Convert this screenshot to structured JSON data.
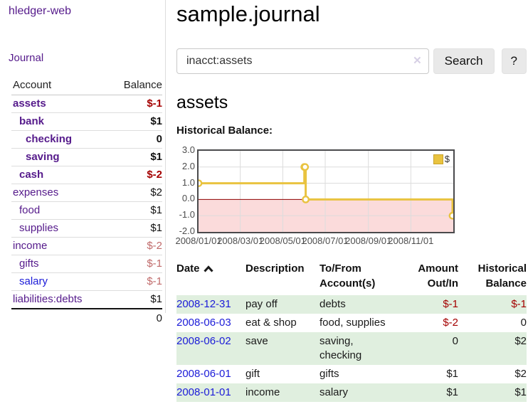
{
  "sidebar": {
    "title": "hledger-web",
    "journal_link": "Journal",
    "accounts": {
      "col_account": "Account",
      "col_balance": "Balance",
      "rows": [
        {
          "name": "assets",
          "balance": "$-1",
          "depth": 1,
          "bold": true,
          "name_color": "purple",
          "balance_color": "negative-strong"
        },
        {
          "name": "bank",
          "balance": "$1",
          "depth": 2,
          "bold": true,
          "name_color": "purple",
          "balance_color": "normal"
        },
        {
          "name": "checking",
          "balance": "0",
          "depth": 3,
          "bold": true,
          "name_color": "purple",
          "balance_color": "normal"
        },
        {
          "name": "saving",
          "balance": "$1",
          "depth": 3,
          "bold": true,
          "name_color": "purple",
          "balance_color": "normal"
        },
        {
          "name": "cash",
          "balance": "$-2",
          "depth": 2,
          "bold": true,
          "name_color": "purple",
          "balance_color": "negative-strong"
        },
        {
          "name": "expenses",
          "balance": "$2",
          "depth": 1,
          "bold": false,
          "name_color": "purple",
          "balance_color": "normal"
        },
        {
          "name": "food",
          "balance": "$1",
          "depth": 2,
          "bold": false,
          "name_color": "purple",
          "balance_color": "normal"
        },
        {
          "name": "supplies",
          "balance": "$1",
          "depth": 2,
          "bold": false,
          "name_color": "purple",
          "balance_color": "normal"
        },
        {
          "name": "income",
          "balance": "$-2",
          "depth": 1,
          "bold": false,
          "name_color": "purple",
          "balance_color": "negative-dim"
        },
        {
          "name": "gifts",
          "balance": "$-1",
          "depth": 2,
          "bold": false,
          "name_color": "purple",
          "balance_color": "negative-dim"
        },
        {
          "name": "salary",
          "balance": "$-1",
          "depth": 2,
          "bold": false,
          "name_color": "blue",
          "balance_color": "negative-dim"
        },
        {
          "name": "liabilities:debts",
          "balance": "$1",
          "depth": 1,
          "bold": false,
          "name_color": "purple",
          "balance_color": "normal"
        }
      ],
      "total": "0"
    }
  },
  "main": {
    "title": "sample.journal",
    "search": {
      "value": "inacct:assets",
      "clear_icon": "✕",
      "search_button": "Search",
      "help_button": "?"
    },
    "account_heading": "assets",
    "chart_title": "Historical Balance:"
  },
  "register": {
    "headers": {
      "date": "Date",
      "description": "Description",
      "accounts": "To/From Account(s)",
      "amount": "Amount Out/In",
      "balance": "Historical Balance"
    },
    "rows": [
      {
        "date": "2008-12-31",
        "description": "pay off",
        "accounts": "debts",
        "amount": "$-1",
        "amount_negative": true,
        "balance": "$-1",
        "balance_negative": true,
        "highlight": true
      },
      {
        "date": "2008-06-03",
        "description": "eat & shop",
        "accounts": "food, supplies",
        "amount": "$-2",
        "amount_negative": true,
        "balance": "0",
        "balance_negative": false,
        "highlight": false
      },
      {
        "date": "2008-06-02",
        "description": "save",
        "accounts": "saving, checking",
        "amount": "0",
        "amount_negative": false,
        "balance": "$2",
        "balance_negative": false,
        "highlight": true
      },
      {
        "date": "2008-06-01",
        "description": "gift",
        "accounts": "gifts",
        "amount": "$1",
        "amount_negative": false,
        "balance": "$2",
        "balance_negative": false,
        "highlight": false
      },
      {
        "date": "2008-01-01",
        "description": "income",
        "accounts": "salary",
        "amount": "$1",
        "amount_negative": false,
        "balance": "$1",
        "balance_negative": false,
        "highlight": true
      }
    ]
  },
  "chart_data": {
    "type": "line",
    "step": true,
    "title": "Historical Balance:",
    "series": [
      {
        "name": "$",
        "color": "#e9c340",
        "points": [
          [
            "2008-01-01",
            1
          ],
          [
            "2008-06-01",
            2
          ],
          [
            "2008-06-02",
            2
          ],
          [
            "2008-06-03",
            0
          ],
          [
            "2008-12-31",
            -1
          ]
        ]
      }
    ],
    "x_range": [
      "2008-01-01",
      "2009-01-01"
    ],
    "ylim": [
      -2,
      3
    ],
    "yticks": [
      "3.0",
      "2.0",
      "1.0",
      "0.0",
      "-1.0",
      "-2.0"
    ],
    "xticks": [
      {
        "label": "2008/01/01",
        "date": "2008-01-01"
      },
      {
        "label": "2008/03/01",
        "date": "2008-03-01"
      },
      {
        "label": "2008/05/01",
        "date": "2008-05-01"
      },
      {
        "label": "2008/07/01",
        "date": "2008-07-01"
      },
      {
        "label": "2008/09/01",
        "date": "2008-09-01"
      },
      {
        "label": "2008/11/01",
        "date": "2008-11-01"
      }
    ],
    "legend": {
      "label": "$",
      "position": "top-right"
    },
    "grid": true,
    "negative_fill": "#fbdbdb",
    "zero_line": "#8e0000"
  },
  "colors": {
    "purple_link": "#551a8b",
    "blue_link": "#1b1bd8",
    "negative_strong": "#a40000",
    "negative_dim": "#c06a6a",
    "row_highlight": "#e0efdf",
    "series_gold": "#e9c340"
  }
}
